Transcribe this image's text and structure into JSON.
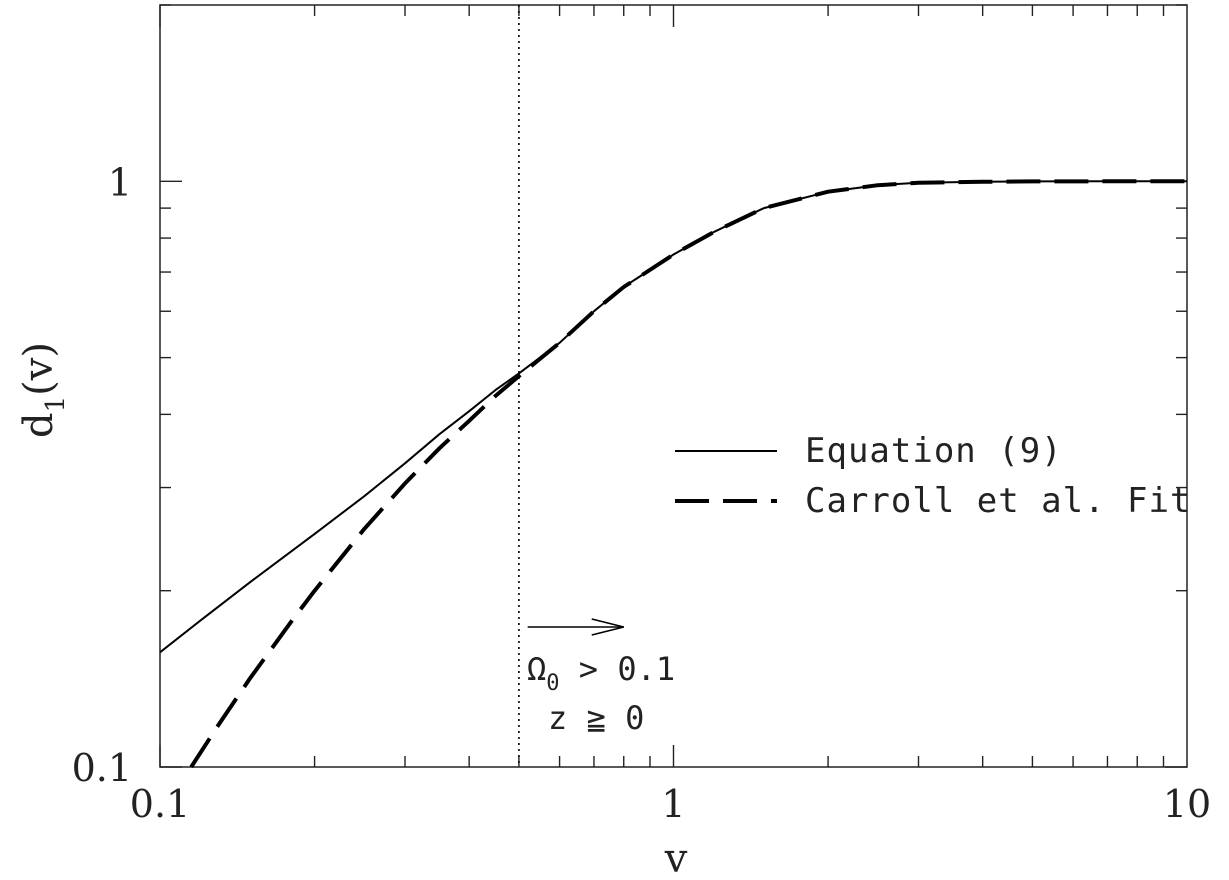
{
  "chart_data": {
    "type": "line",
    "xlabel": "v",
    "ylabel_main": "d",
    "ylabel_sub": "1",
    "ylabel_tail": "(v)",
    "xscale": "log",
    "yscale": "log",
    "xlim": [
      0.1,
      10
    ],
    "ylim": [
      0.1,
      2.0
    ],
    "x_tick_labels": [
      "0.1",
      "1",
      "10"
    ],
    "y_tick_labels": [
      "0.1",
      "1"
    ],
    "grid": false,
    "legend_position": "center-right",
    "series": [
      {
        "name": "Equation (9)",
        "style": "solid",
        "x": [
          0.1,
          0.12,
          0.15,
          0.2,
          0.25,
          0.3,
          0.35,
          0.4,
          0.45,
          0.5,
          0.6,
          0.7,
          0.8,
          1.0,
          1.2,
          1.5,
          2.0,
          2.5,
          3.0,
          4.0,
          5.0,
          7.0,
          10.0
        ],
        "values": [
          0.157,
          0.178,
          0.207,
          0.25,
          0.29,
          0.33,
          0.37,
          0.405,
          0.44,
          0.47,
          0.53,
          0.6,
          0.66,
          0.75,
          0.82,
          0.9,
          0.96,
          0.985,
          0.994,
          0.998,
          0.9995,
          1.0,
          1.0
        ]
      },
      {
        "name": "Carroll et al. Fit",
        "style": "dashed",
        "x": [
          0.115,
          0.13,
          0.15,
          0.18,
          0.2,
          0.25,
          0.3,
          0.35,
          0.4,
          0.45,
          0.5,
          0.6,
          0.7,
          0.8,
          1.0,
          1.2,
          1.5,
          2.0,
          2.5,
          3.0,
          4.0,
          5.0,
          7.0,
          10.0
        ],
        "values": [
          0.1,
          0.118,
          0.142,
          0.177,
          0.2,
          0.255,
          0.305,
          0.35,
          0.39,
          0.43,
          0.465,
          0.53,
          0.6,
          0.66,
          0.75,
          0.82,
          0.9,
          0.96,
          0.985,
          0.994,
          0.998,
          0.9995,
          1.0,
          1.0
        ]
      }
    ],
    "vertical_line": {
      "x": 0.5,
      "style": "dotted"
    },
    "annotation": {
      "arrow_from_x": 0.52,
      "arrow_to_x": 0.8,
      "line1_symbol": "Ω",
      "line1_sub": "0",
      "line1_rest": " > 0.1",
      "line2": "z ≧ 0"
    },
    "colors": {
      "line": "#000000",
      "axis": "#222222"
    }
  }
}
